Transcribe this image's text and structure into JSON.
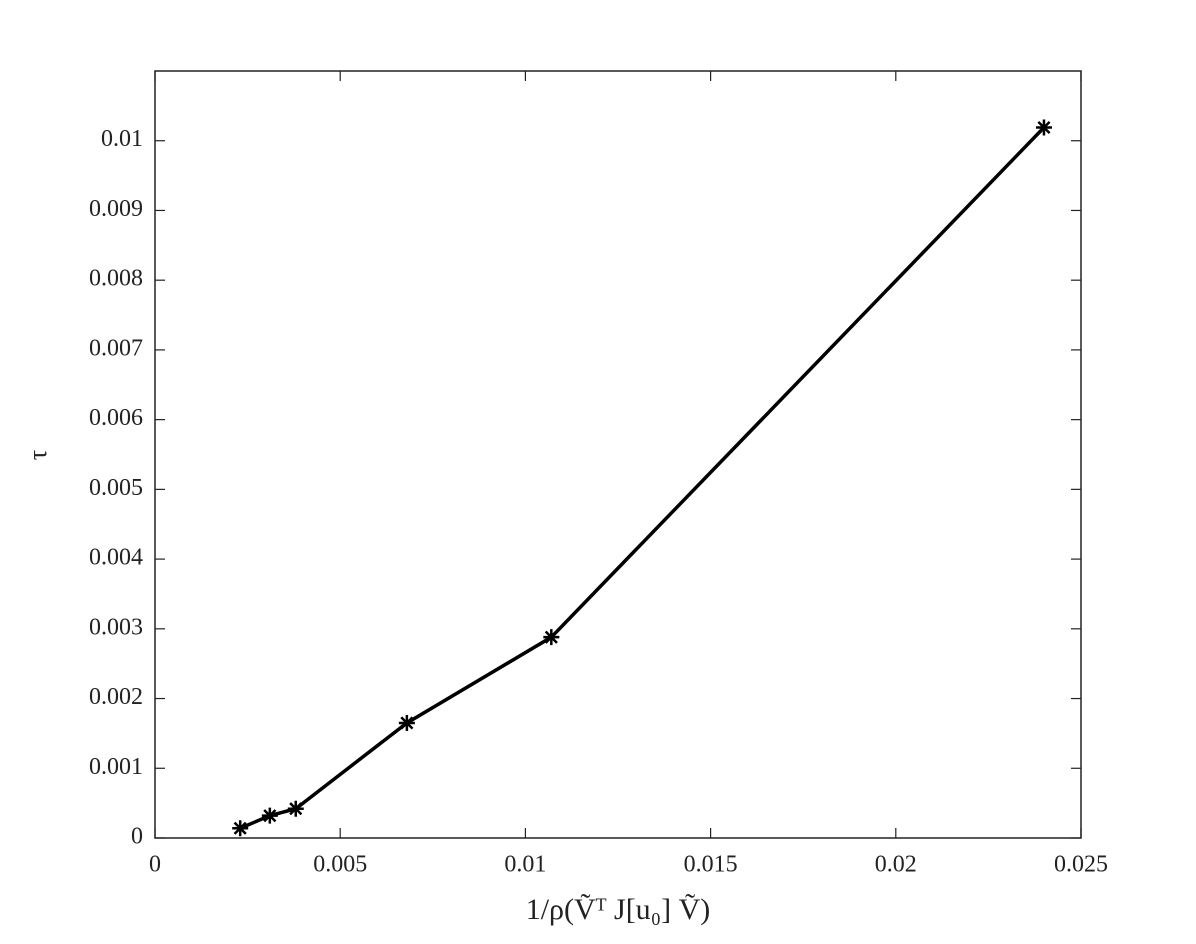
{
  "chart_data": {
    "type": "line",
    "x_label": "1/ρ(Ṽᵀ J[u₀] Ṽ)",
    "y_label": "τ",
    "x": [
      0.0023,
      0.0031,
      0.0038,
      0.0068,
      0.0107,
      0.024
    ],
    "series": [
      {
        "color": "#000000",
        "marker": "asterisk",
        "values": [
          0.00014,
          0.00032,
          0.00042,
          0.00165,
          0.00288,
          0.01019
        ]
      }
    ],
    "xlim": [
      0,
      0.025
    ],
    "xticks": [
      0,
      0.005,
      0.01,
      0.015,
      0.02,
      0.025
    ],
    "ylim": [
      0,
      0.011
    ],
    "yticks": [
      0,
      0.001,
      0.002,
      0.003,
      0.004,
      0.005,
      0.006,
      0.007,
      0.008,
      0.009,
      0.01
    ],
    "grid": false
  }
}
